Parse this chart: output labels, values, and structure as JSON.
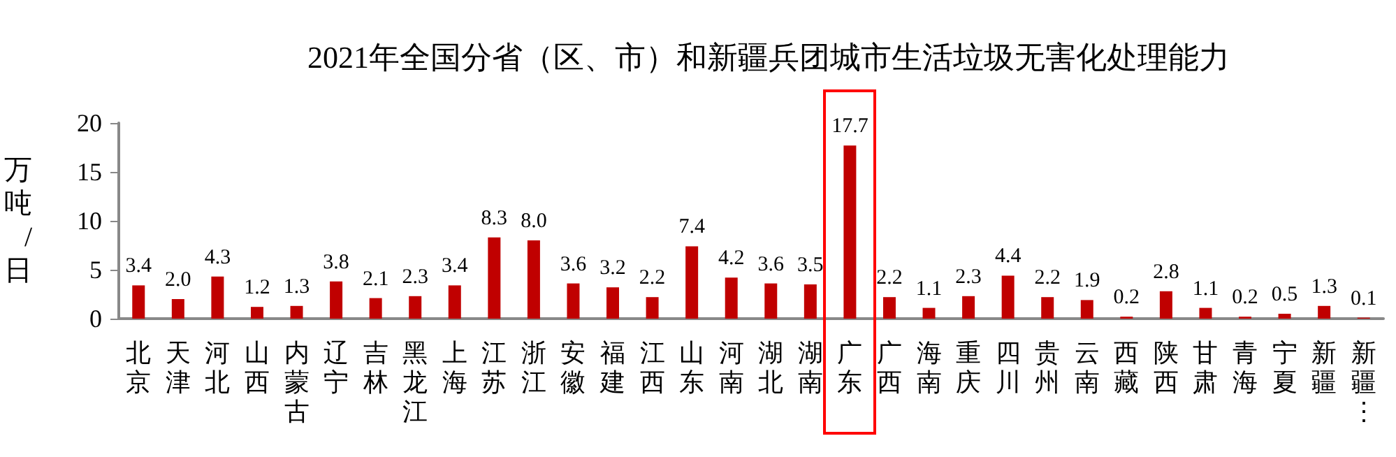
{
  "chart_data": {
    "type": "bar",
    "title": "2021年全国分省（区、市）和新疆兵团城市生活垃圾无害化处理能力",
    "ylabel": "万吨/日",
    "categories": [
      "北京",
      "天津",
      "河北",
      "山西",
      "内蒙古",
      "辽宁",
      "吉林",
      "黑龙江",
      "上海",
      "江苏",
      "浙江",
      "安徽",
      "福建",
      "江西",
      "山东",
      "河南",
      "湖北",
      "湖南",
      "广东",
      "广西",
      "海南",
      "重庆",
      "四川",
      "贵州",
      "云南",
      "西藏",
      "陕西",
      "甘肃",
      "青海",
      "宁夏",
      "新疆",
      "新疆⋮"
    ],
    "values": [
      3.4,
      2,
      4.3,
      1.2,
      1.3,
      3.8,
      2.1,
      2.3,
      3.4,
      8.3,
      8,
      3.6,
      3.2,
      2.2,
      7.4,
      4.2,
      3.6,
      3.5,
      17.7,
      2.2,
      1.1,
      2.3,
      4.4,
      2.2,
      1.9,
      0.2,
      2.8,
      1.1,
      0.2,
      0.5,
      1.3,
      0.1
    ],
    "value_labels": [
      "3.4",
      "2.0",
      "4.3",
      "1.2",
      "1.3",
      "3.8",
      "2.1",
      "2.3",
      "3.4",
      "8.3",
      "8.0",
      "3.6",
      "3.2",
      "2.2",
      "7.4",
      "4.2",
      "3.6",
      "3.5",
      "17.7",
      "2.2",
      "1.1",
      "2.3",
      "4.4",
      "2.2",
      "1.9",
      "0.2",
      "2.8",
      "1.1",
      "0.2",
      "0.5",
      "1.3",
      "0.1"
    ],
    "color": "#c00000",
    "ylim": [
      0,
      20
    ],
    "yticks": [
      0,
      5,
      10,
      15,
      20
    ],
    "grid": false
  }
}
